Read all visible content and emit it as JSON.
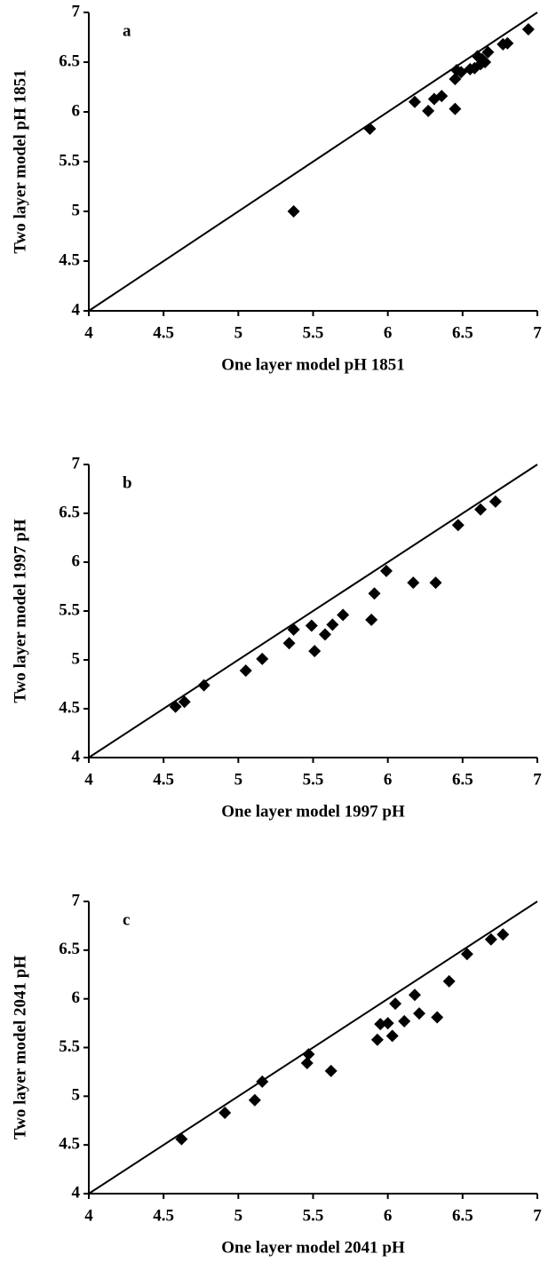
{
  "chart_data": [
    {
      "type": "scatter",
      "annotation": "a",
      "xlabel": "One layer model pH 1851",
      "ylabel": "Two layer model pH 1851",
      "xlim": [
        4,
        7
      ],
      "ylim": [
        4,
        7
      ],
      "xticks": [
        4,
        4.5,
        5,
        5.5,
        6,
        6.5,
        7
      ],
      "yticks": [
        4,
        4.5,
        5,
        5.5,
        6,
        6.5,
        7
      ],
      "identity_line": true,
      "color": "#000000",
      "x": [
        5.37,
        5.88,
        6.18,
        6.27,
        6.31,
        6.36,
        6.45,
        6.45,
        6.46,
        6.49,
        6.55,
        6.58,
        6.6,
        6.62,
        6.63,
        6.65,
        6.67,
        6.77,
        6.8,
        6.94
      ],
      "values": [
        5.0,
        5.83,
        6.1,
        6.01,
        6.13,
        6.16,
        6.03,
        6.33,
        6.42,
        6.4,
        6.43,
        6.44,
        6.56,
        6.48,
        6.53,
        6.5,
        6.6,
        6.68,
        6.69,
        6.83
      ]
    },
    {
      "type": "scatter",
      "annotation": "b",
      "xlabel": "One layer model 1997 pH",
      "ylabel": "Two layer model 1997 pH",
      "xlim": [
        4,
        7
      ],
      "ylim": [
        4,
        7
      ],
      "xticks": [
        4,
        4.5,
        5,
        5.5,
        6,
        6.5,
        7
      ],
      "yticks": [
        4,
        4.5,
        5,
        5.5,
        6,
        6.5,
        7
      ],
      "identity_line": true,
      "color": "#000000",
      "x": [
        4.58,
        4.64,
        4.77,
        5.05,
        5.16,
        5.34,
        5.37,
        5.49,
        5.51,
        5.58,
        5.63,
        5.7,
        5.89,
        5.91,
        5.99,
        6.17,
        6.32,
        6.47,
        6.62,
        6.72
      ],
      "values": [
        4.52,
        4.57,
        4.74,
        4.89,
        5.01,
        5.17,
        5.31,
        5.35,
        5.09,
        5.26,
        5.36,
        5.46,
        5.41,
        5.68,
        5.91,
        5.79,
        5.79,
        6.38,
        6.54,
        6.62
      ]
    },
    {
      "type": "scatter",
      "annotation": "c",
      "xlabel": "One layer model 2041 pH",
      "ylabel": "Two layer model 2041 pH",
      "xlim": [
        4,
        7
      ],
      "ylim": [
        4,
        7
      ],
      "xticks": [
        4,
        4.5,
        5,
        5.5,
        6,
        6.5,
        7
      ],
      "yticks": [
        4,
        4.5,
        5,
        5.5,
        6,
        6.5,
        7
      ],
      "identity_line": true,
      "color": "#000000",
      "x": [
        4.62,
        4.91,
        5.11,
        5.16,
        5.46,
        5.47,
        5.62,
        5.93,
        5.95,
        6.0,
        6.03,
        6.05,
        6.11,
        6.18,
        6.21,
        6.33,
        6.41,
        6.53,
        6.69,
        6.77
      ],
      "values": [
        4.56,
        4.83,
        4.96,
        5.15,
        5.34,
        5.43,
        5.26,
        5.58,
        5.74,
        5.75,
        5.62,
        5.95,
        5.77,
        6.04,
        5.85,
        5.81,
        6.18,
        6.46,
        6.61,
        6.66
      ]
    }
  ]
}
